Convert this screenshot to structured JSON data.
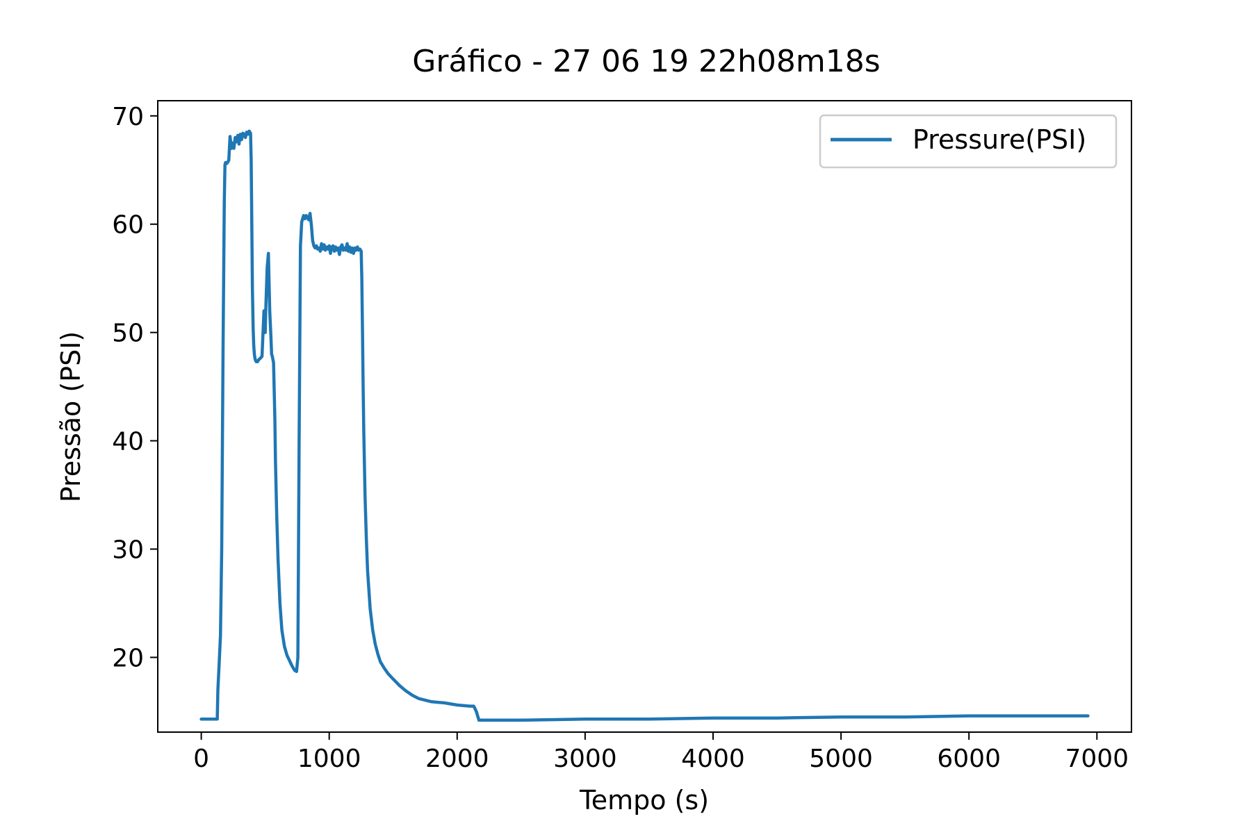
{
  "chart_data": {
    "type": "line",
    "title": "Gráfico - 27 06 19 22h08m18s",
    "xlabel": "Tempo (s)",
    "ylabel": "Pressão (PSI)",
    "xlim": [
      -340,
      7270
    ],
    "ylim": [
      13.1,
      71.4
    ],
    "xticks": [
      0,
      1000,
      2000,
      3000,
      4000,
      5000,
      6000,
      7000
    ],
    "xtick_labels": [
      "0",
      "1000",
      "2000",
      "3000",
      "4000",
      "5000",
      "6000",
      "7000"
    ],
    "yticks": [
      20,
      30,
      40,
      50,
      60,
      70
    ],
    "ytick_labels": [
      "20",
      "30",
      "40",
      "50",
      "60",
      "70"
    ],
    "grid": false,
    "legend_position": "top-right",
    "series": [
      {
        "name": "Pressure(PSI)",
        "color": "#1f77b4",
        "x": [
          0,
          50,
          100,
          125,
          130,
          140,
          150,
          160,
          170,
          180,
          185,
          190,
          200,
          215,
          225,
          235,
          240,
          245,
          255,
          265,
          275,
          285,
          295,
          305,
          315,
          325,
          335,
          345,
          355,
          365,
          375,
          385,
          390,
          395,
          400,
          405,
          410,
          415,
          420,
          425,
          430,
          440,
          450,
          460,
          475,
          490,
          495,
          500,
          505,
          515,
          525,
          535,
          545,
          550,
          555,
          560,
          565,
          575,
          580,
          590,
          600,
          615,
          630,
          650,
          670,
          690,
          710,
          730,
          745,
          755,
          765,
          775,
          785,
          800,
          810,
          820,
          830,
          840,
          850,
          860,
          870,
          880,
          890,
          900,
          910,
          920,
          930,
          940,
          950,
          960,
          970,
          980,
          990,
          1000,
          1010,
          1020,
          1030,
          1040,
          1050,
          1060,
          1070,
          1080,
          1090,
          1100,
          1110,
          1120,
          1130,
          1140,
          1150,
          1160,
          1170,
          1180,
          1190,
          1200,
          1210,
          1220,
          1230,
          1240,
          1250,
          1255,
          1260,
          1265,
          1270,
          1280,
          1290,
          1300,
          1320,
          1340,
          1360,
          1380,
          1400,
          1430,
          1460,
          1500,
          1550,
          1600,
          1650,
          1700,
          1800,
          1900,
          2000,
          2100,
          2130,
          2150,
          2170,
          2200,
          2300,
          2500,
          3000,
          3500,
          4000,
          4500,
          5000,
          5500,
          6000,
          6500,
          6930
        ],
        "values": [
          14.3,
          14.3,
          14.3,
          14.3,
          17.0,
          19.5,
          22.0,
          30.0,
          48.0,
          62.0,
          65.5,
          65.7,
          65.6,
          65.9,
          68.1,
          67.0,
          67.3,
          67.5,
          67.0,
          68.0,
          67.6,
          68.2,
          67.4,
          68.3,
          67.8,
          68.4,
          68.3,
          68.0,
          68.5,
          68.3,
          68.6,
          68.4,
          66.0,
          60.0,
          54.0,
          50.5,
          48.8,
          48.0,
          47.6,
          47.4,
          47.3,
          47.3,
          47.5,
          47.6,
          47.8,
          52.0,
          50.5,
          50.0,
          52.5,
          56.0,
          57.3,
          52.0,
          49.5,
          48.0,
          47.8,
          47.5,
          47.2,
          42.0,
          38.0,
          33.0,
          29.0,
          25.0,
          22.5,
          21.0,
          20.2,
          19.7,
          19.2,
          18.8,
          18.7,
          20.0,
          40.0,
          58.0,
          60.2,
          60.8,
          60.5,
          60.8,
          60.6,
          60.4,
          61.0,
          60.0,
          58.5,
          58.0,
          57.8,
          58.0,
          57.7,
          57.8,
          57.5,
          58.2,
          57.7,
          58.1,
          57.6,
          57.9,
          57.7,
          58.0,
          57.3,
          57.9,
          58.0,
          57.5,
          57.9,
          57.6,
          57.8,
          57.2,
          57.9,
          58.1,
          57.6,
          57.8,
          57.6,
          58.2,
          57.5,
          57.9,
          57.4,
          57.8,
          57.3,
          57.8,
          57.6,
          57.9,
          57.6,
          57.7,
          57.5,
          55.0,
          50.0,
          45.0,
          41.0,
          35.0,
          31.0,
          28.0,
          24.5,
          22.5,
          21.2,
          20.3,
          19.6,
          19.0,
          18.5,
          18.0,
          17.4,
          16.9,
          16.5,
          16.2,
          15.9,
          15.8,
          15.6,
          15.5,
          15.5,
          15.0,
          14.2,
          14.2,
          14.2,
          14.2,
          14.3,
          14.3,
          14.4,
          14.4,
          14.5,
          14.5,
          14.6,
          14.6,
          14.6
        ]
      }
    ]
  }
}
